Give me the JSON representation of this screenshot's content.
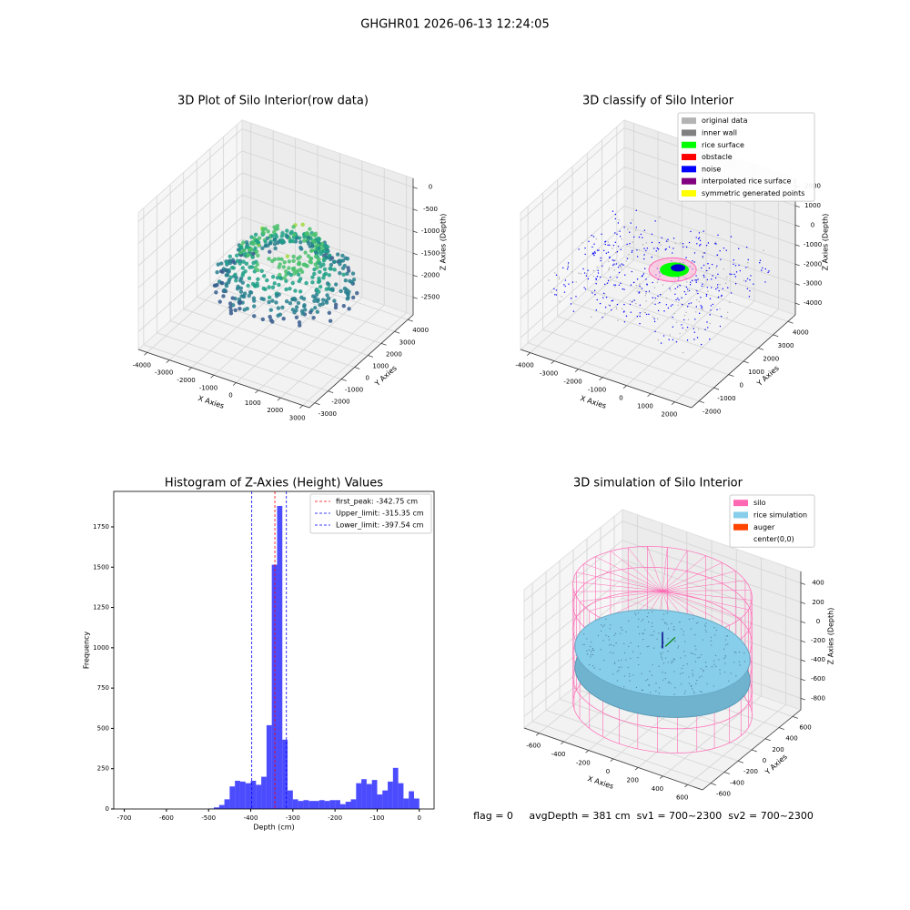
{
  "title": "GHGHR01 2026-06-13 12:24:05",
  "chart_data": [
    {
      "type": "scatter3d",
      "title": "3D Plot of Silo Interior(row data)",
      "xlabel": "X Axies",
      "ylabel": "Y Axies",
      "zlabel": "Z Axies (Depth)",
      "xlim": [
        -4400,
        3300
      ],
      "xticks": [
        -4000,
        -3000,
        -2000,
        -1000,
        0,
        1000,
        2000,
        3000
      ],
      "ylim": [
        -3400,
        4400
      ],
      "yticks": [
        -3000,
        -2000,
        -1000,
        0,
        1000,
        2000,
        3000,
        4000
      ],
      "zlim": [
        -2900,
        200
      ],
      "zticks": [
        -2500,
        -2000,
        -1500,
        -1000,
        -500,
        0
      ]
    },
    {
      "type": "scatter3d",
      "title": "3D classify of Silo Interior",
      "xlabel": "X Axies",
      "ylabel": "Y Axies",
      "zlabel": "Z Axies (Depth)",
      "xlim": [
        -4400,
        2700
      ],
      "xticks": [
        -4000,
        -3000,
        -2000,
        -1000,
        0,
        1000,
        2000
      ],
      "ylim": [
        -2500,
        4500
      ],
      "yticks": [
        -2000,
        -1000,
        0,
        1000,
        2000,
        3000,
        4000
      ],
      "zlim": [
        -4600,
        2400
      ],
      "zticks": [
        -4000,
        -3000,
        -2000,
        -1000,
        0,
        1000,
        2000
      ],
      "legend": [
        {
          "label": "original data",
          "color": "#b3b3b3"
        },
        {
          "label": "inner wall",
          "color": "#808080"
        },
        {
          "label": "rice surface",
          "color": "#00ff00"
        },
        {
          "label": "obstacle",
          "color": "#ff0000"
        },
        {
          "label": "noise",
          "color": "#0000ff"
        },
        {
          "label": "interpolated rice surface",
          "color": "#800080"
        },
        {
          "label": "symmetric generated points",
          "color": "#ffff00"
        }
      ]
    },
    {
      "type": "histogram",
      "title": "Histogram of Z-Axies (Height) Values",
      "xlabel": "Depth (cm)",
      "ylabel": "Frequency",
      "color": "#0000ff",
      "bins": [
        -500,
        -487.5,
        -475,
        -462.5,
        -450,
        -437.5,
        -425,
        -412.5,
        -400,
        -387.5,
        -375,
        -362.5,
        -350,
        -337.5,
        -325,
        -312.5,
        -300,
        -287.5,
        -275,
        -262.5,
        -250,
        -237.5,
        -225,
        -212.5,
        -200,
        -187.5,
        -175,
        -162.5,
        -150,
        -137.5,
        -125,
        -112.5,
        -100,
        -87.5,
        -75,
        -62.5,
        -50,
        -37.5,
        -25,
        -12.5,
        0
      ],
      "counts": [
        3,
        10,
        25,
        60,
        140,
        175,
        170,
        160,
        175,
        150,
        200,
        520,
        1515,
        1880,
        430,
        115,
        60,
        50,
        55,
        50,
        50,
        55,
        50,
        55,
        55,
        30,
        45,
        60,
        160,
        185,
        155,
        180,
        90,
        115,
        170,
        255,
        160,
        65,
        110,
        65
      ],
      "xlim": [
        -725,
        35
      ],
      "xticks": [
        -700,
        -600,
        -500,
        -400,
        -300,
        -200,
        -100,
        0
      ],
      "ylim": [
        0,
        1970
      ],
      "yticks": [
        0,
        250,
        500,
        750,
        1000,
        1250,
        1500,
        1750
      ],
      "lines": [
        {
          "label": "first_peak: -342.75 cm",
          "value": -342.75,
          "color": "#ff0000"
        },
        {
          "label": "Upper_limit: -315.35 cm",
          "value": -315.35,
          "color": "#0000ff"
        },
        {
          "label": "Lower_limit: -397.54 cm",
          "value": -397.54,
          "color": "#0000ff"
        }
      ],
      "legend_loc": "upper right"
    },
    {
      "type": "surface3d",
      "title": "3D simulation of Silo Interior",
      "xlabel": "X Axies",
      "ylabel": "Y Axies",
      "zlabel": "Z Axies (Depth)",
      "xlim": [
        -720,
        720
      ],
      "xticks": [
        -600,
        -400,
        -200,
        0,
        200,
        400,
        600
      ],
      "ylim": [
        -720,
        720
      ],
      "yticks": [
        -600,
        -400,
        -200,
        0,
        200,
        400,
        600
      ],
      "zlim": [
        -920,
        520
      ],
      "zticks": [
        -800,
        -600,
        -400,
        -200,
        0,
        200,
        400
      ],
      "legend": [
        {
          "label": "silo",
          "color": "#ff69b4"
        },
        {
          "label": "rice simulation",
          "color": "#87ceeb"
        },
        {
          "label": "auger",
          "color": "#ff4500"
        },
        {
          "label": "center(0,0)"
        }
      ]
    }
  ],
  "footer": "flag = 0     avgDepth = 381 cm  sv1 = 700~2300  sv2 = 700~2300"
}
